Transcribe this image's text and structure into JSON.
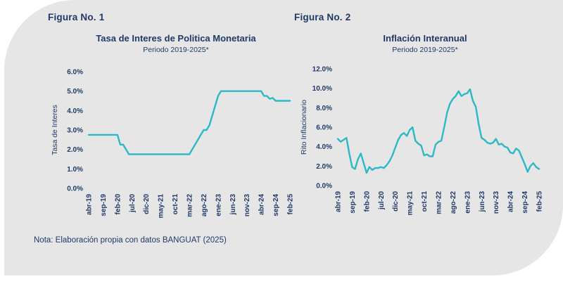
{
  "page": {
    "background": "#ffffff",
    "card_background": "#e6e6e6",
    "text_color": "#1f3a68",
    "accent_line_color": "#2db8c5"
  },
  "figure1": {
    "label": "Figura No. 1"
  },
  "figure2": {
    "label": "Figura No. 2"
  },
  "note": "Nota: Elaboración propia con datos BANGUAT (2025)",
  "chart_data": [
    {
      "type": "line",
      "figure": "Figura No. 1",
      "title": "Tasa de Interes de Politica Monetaria",
      "subtitle": "Periodo 2019-2025*",
      "ylabel": "Tasa de Interes",
      "xlabel": "",
      "ylim": [
        0,
        6
      ],
      "yticks": [
        "0.0%",
        "1.0%",
        "2.0%",
        "3.0%",
        "4.0%",
        "5.0%",
        "6.0%"
      ],
      "grid": false,
      "legend": "none",
      "line_color": "#2db8c5",
      "x_tick_every": 5,
      "x_tick_labels": [
        "abr-19",
        "sep-19",
        "feb-20",
        "jul-20",
        "dic-20",
        "may-21",
        "oct-21",
        "mar-22",
        "ago-22",
        "ene-23",
        "jun-23",
        "nov-23",
        "abr-24",
        "sep-24",
        "feb-25"
      ],
      "x": [
        "abr-19",
        "may-19",
        "jun-19",
        "jul-19",
        "ago-19",
        "sep-19",
        "oct-19",
        "nov-19",
        "dic-19",
        "ene-20",
        "feb-20",
        "mar-20",
        "abr-20",
        "may-20",
        "jun-20",
        "jul-20",
        "ago-20",
        "sep-20",
        "oct-20",
        "nov-20",
        "dic-20",
        "ene-21",
        "feb-21",
        "mar-21",
        "abr-21",
        "may-21",
        "jun-21",
        "jul-21",
        "ago-21",
        "sep-21",
        "oct-21",
        "nov-21",
        "dic-21",
        "ene-22",
        "feb-22",
        "mar-22",
        "abr-22",
        "may-22",
        "jun-22",
        "jul-22",
        "ago-22",
        "sep-22",
        "oct-22",
        "nov-22",
        "dic-22",
        "ene-23",
        "feb-23",
        "mar-23",
        "abr-23",
        "may-23",
        "jun-23",
        "jul-23",
        "ago-23",
        "sep-23",
        "oct-23",
        "nov-23",
        "dic-23",
        "ene-24",
        "feb-24",
        "mar-24",
        "abr-24",
        "may-24",
        "jun-24",
        "jul-24",
        "ago-24",
        "sep-24",
        "oct-24",
        "nov-24",
        "dic-24",
        "ene-25",
        "feb-25"
      ],
      "values": [
        2.75,
        2.75,
        2.75,
        2.75,
        2.75,
        2.75,
        2.75,
        2.75,
        2.75,
        2.75,
        2.75,
        2.25,
        2.25,
        2.0,
        1.75,
        1.75,
        1.75,
        1.75,
        1.75,
        1.75,
        1.75,
        1.75,
        1.75,
        1.75,
        1.75,
        1.75,
        1.75,
        1.75,
        1.75,
        1.75,
        1.75,
        1.75,
        1.75,
        1.75,
        1.75,
        1.75,
        2.0,
        2.25,
        2.5,
        2.75,
        3.0,
        3.0,
        3.25,
        3.75,
        4.25,
        4.75,
        5.0,
        5.0,
        5.0,
        5.0,
        5.0,
        5.0,
        5.0,
        5.0,
        5.0,
        5.0,
        5.0,
        5.0,
        5.0,
        5.0,
        5.0,
        4.75,
        4.75,
        4.6,
        4.65,
        4.5,
        4.5,
        4.5,
        4.5,
        4.5,
        4.5
      ]
    },
    {
      "type": "line",
      "figure": "Figura No. 2",
      "title": "Inflación Interanual",
      "subtitle": "Periodo 2019-2025*",
      "ylabel": "Rito Inflacionario",
      "xlabel": "",
      "ylim": [
        0,
        12
      ],
      "yticks": [
        "0.0%",
        "2.0%",
        "4.0%",
        "6.0%",
        "8.0%",
        "10.0%",
        "12.0%"
      ],
      "grid": false,
      "legend": "none",
      "line_color": "#2db8c5",
      "x_tick_every": 5,
      "x_tick_labels": [
        "abr-19",
        "sep-19",
        "feb-20",
        "jul-20",
        "dic-20",
        "may-21",
        "oct-21",
        "mar-22",
        "ago-22",
        "ene-23",
        "jun-23",
        "nov-23",
        "abr-24",
        "sep-24",
        "feb-25"
      ],
      "x": [
        "abr-19",
        "may-19",
        "jun-19",
        "jul-19",
        "ago-19",
        "sep-19",
        "oct-19",
        "nov-19",
        "dic-19",
        "ene-20",
        "feb-20",
        "mar-20",
        "abr-20",
        "may-20",
        "jun-20",
        "jul-20",
        "ago-20",
        "sep-20",
        "oct-20",
        "nov-20",
        "dic-20",
        "ene-21",
        "feb-21",
        "mar-21",
        "abr-21",
        "may-21",
        "jun-21",
        "jul-21",
        "ago-21",
        "sep-21",
        "oct-21",
        "nov-21",
        "dic-21",
        "ene-22",
        "feb-22",
        "mar-22",
        "abr-22",
        "may-22",
        "jun-22",
        "jul-22",
        "ago-22",
        "sep-22",
        "oct-22",
        "nov-22",
        "dic-22",
        "ene-23",
        "feb-23",
        "mar-23",
        "abr-23",
        "may-23",
        "jun-23",
        "jul-23",
        "ago-23",
        "sep-23",
        "oct-23",
        "nov-23",
        "dic-23",
        "ene-24",
        "feb-24",
        "mar-24",
        "abr-24",
        "may-24",
        "jun-24",
        "jul-24",
        "ago-24",
        "sep-24",
        "oct-24",
        "nov-24",
        "dic-24",
        "ene-25",
        "feb-25"
      ],
      "values": [
        4.8,
        4.5,
        4.7,
        4.9,
        3.3,
        1.9,
        1.7,
        2.7,
        3.3,
        2.3,
        1.3,
        1.9,
        1.6,
        1.8,
        1.8,
        1.9,
        1.8,
        2.1,
        2.5,
        3.1,
        3.9,
        4.7,
        5.2,
        5.4,
        5.1,
        5.7,
        6.0,
        4.6,
        4.3,
        4.1,
        3.1,
        3.2,
        3.0,
        3.0,
        4.2,
        4.5,
        4.6,
        6.0,
        7.5,
        8.4,
        8.9,
        9.2,
        9.7,
        9.2,
        9.4,
        9.5,
        9.9,
        8.7,
        8.1,
        6.3,
        4.9,
        4.7,
        4.4,
        4.3,
        4.4,
        4.8,
        4.2,
        4.3,
        4.0,
        3.9,
        3.4,
        3.3,
        3.8,
        3.6,
        2.9,
        2.2,
        1.4,
        2.0,
        2.3,
        1.9,
        1.7
      ]
    }
  ]
}
